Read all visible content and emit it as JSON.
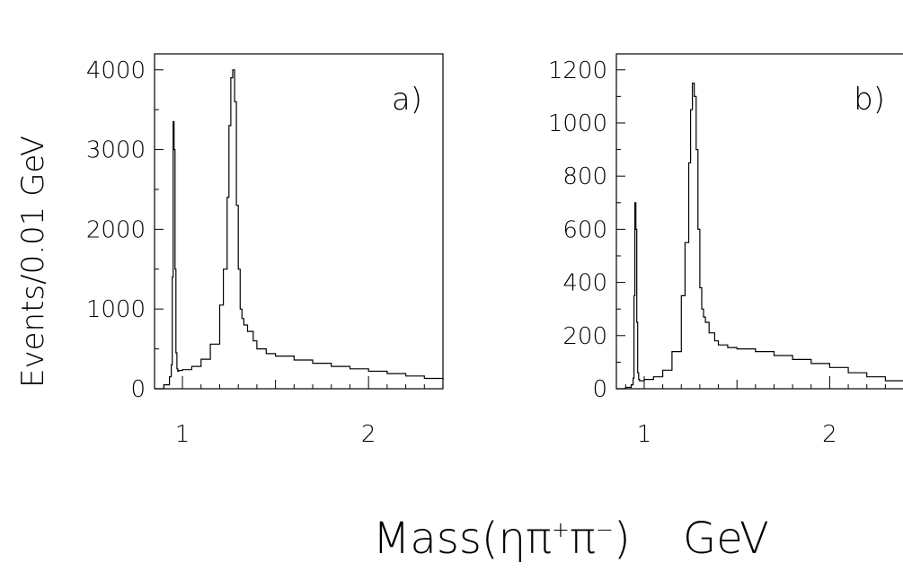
{
  "chart_data": [
    {
      "type": "line",
      "panel_label": "a)",
      "xlim": [
        0.85,
        2.4
      ],
      "ylim": [
        0,
        4200
      ],
      "xticks": [
        1,
        2
      ],
      "yticks": [
        0,
        1000,
        2000,
        3000,
        4000
      ],
      "series": [
        {
          "x": [
            0.85,
            0.9,
            0.93,
            0.94,
            0.945,
            0.95,
            0.955,
            0.96,
            0.965,
            0.97,
            0.975,
            0.98,
            1.0,
            1.05,
            1.1,
            1.15,
            1.2,
            1.22,
            1.24,
            1.25,
            1.26,
            1.27,
            1.28,
            1.29,
            1.3,
            1.31,
            1.32,
            1.33,
            1.35,
            1.38,
            1.4,
            1.45,
            1.5,
            1.6,
            1.7,
            1.8,
            1.9,
            2.0,
            2.1,
            2.2,
            2.3,
            2.4
          ],
          "values": [
            0,
            50,
            150,
            300,
            1400,
            3350,
            3000,
            1500,
            450,
            250,
            220,
            230,
            240,
            280,
            370,
            560,
            1050,
            1500,
            2400,
            3300,
            3900,
            4000,
            3600,
            2300,
            1500,
            1000,
            880,
            800,
            720,
            600,
            500,
            440,
            410,
            360,
            320,
            280,
            250,
            220,
            190,
            160,
            130,
            110
          ]
        }
      ]
    },
    {
      "type": "line",
      "panel_label": "b)",
      "xlim": [
        0.85,
        2.4
      ],
      "ylim": [
        0,
        1260
      ],
      "xticks": [
        1,
        2
      ],
      "yticks": [
        0,
        200,
        400,
        600,
        800,
        1000,
        1200
      ],
      "series": [
        {
          "x": [
            0.85,
            0.9,
            0.93,
            0.94,
            0.945,
            0.95,
            0.955,
            0.96,
            0.965,
            0.97,
            0.975,
            0.98,
            1.0,
            1.05,
            1.1,
            1.15,
            1.2,
            1.22,
            1.24,
            1.25,
            1.26,
            1.27,
            1.28,
            1.29,
            1.3,
            1.31,
            1.32,
            1.33,
            1.35,
            1.38,
            1.4,
            1.45,
            1.5,
            1.6,
            1.7,
            1.8,
            1.9,
            2.0,
            2.1,
            2.2,
            2.3,
            2.4
          ],
          "values": [
            0,
            5,
            15,
            40,
            350,
            700,
            600,
            250,
            60,
            35,
            30,
            30,
            35,
            45,
            70,
            140,
            350,
            550,
            850,
            1050,
            1150,
            1100,
            900,
            600,
            380,
            300,
            270,
            250,
            210,
            180,
            165,
            155,
            150,
            140,
            125,
            110,
            95,
            80,
            60,
            45,
            30,
            20
          ]
        }
      ]
    }
  ],
  "ylabel": "Events/0.01  GeV",
  "xlabel_main": "Mass(ηπ",
  "xlabel_sup1": "+",
  "xlabel_mid": "π",
  "xlabel_sup2": "−",
  "xlabel_close": ")",
  "xlabel_unit": "GeV"
}
